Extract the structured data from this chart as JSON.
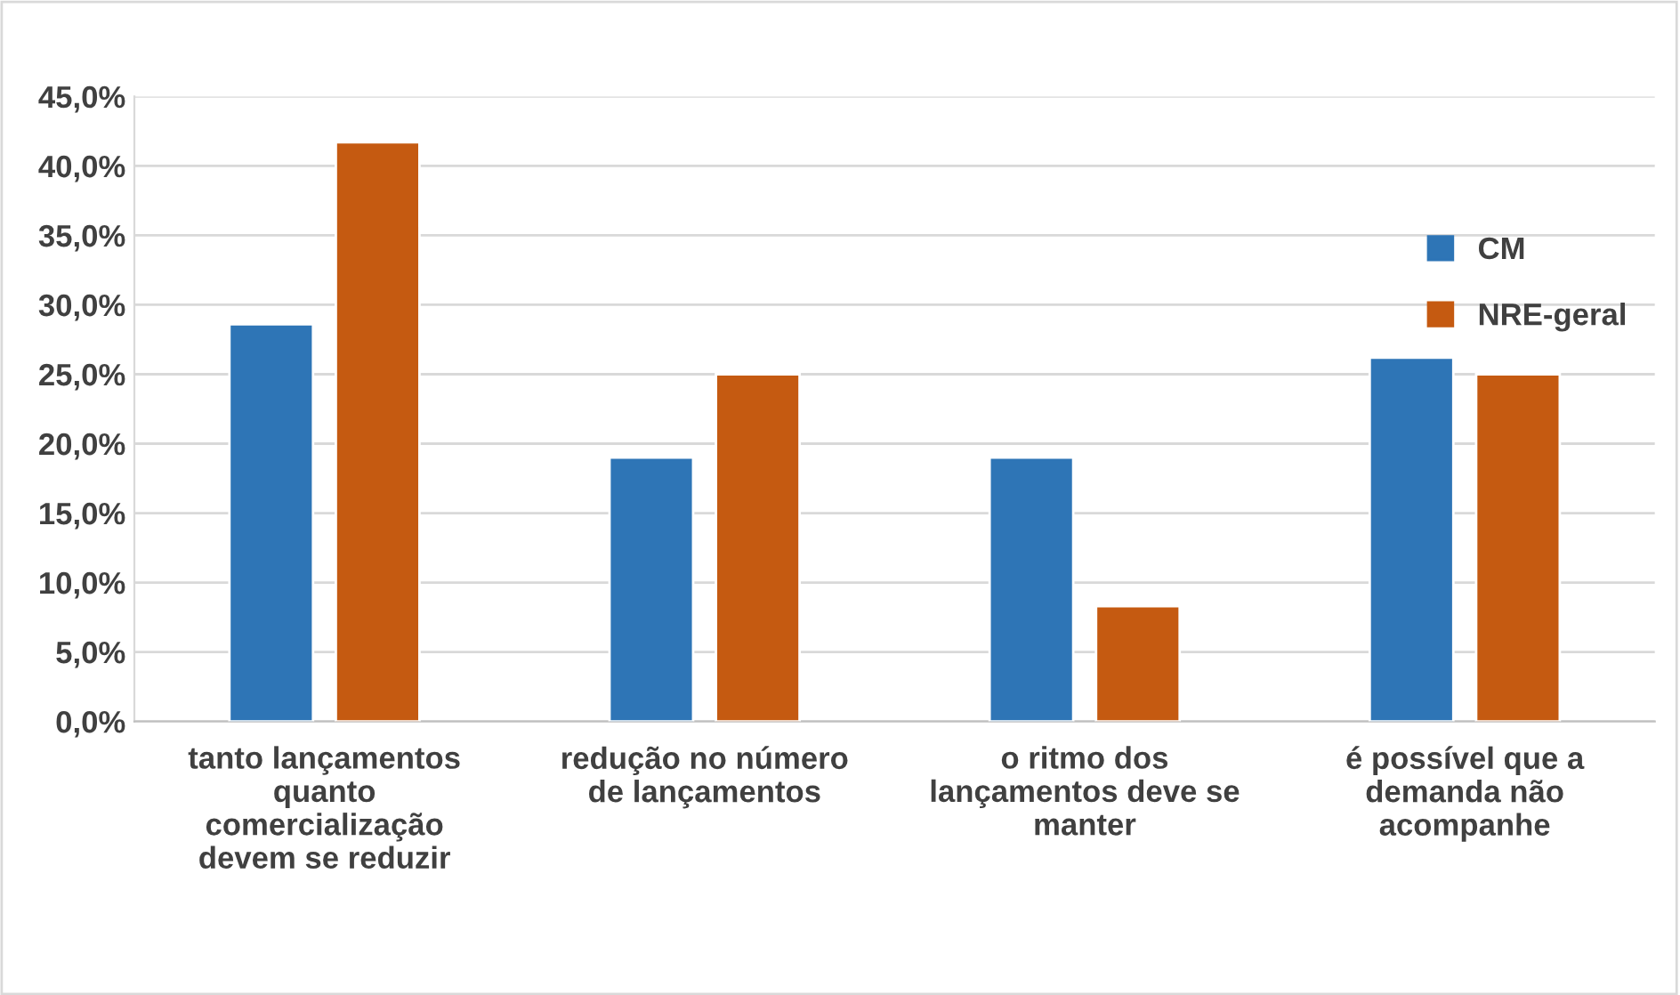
{
  "chart_data": {
    "type": "bar",
    "categories": [
      "tanto lançamentos\nquanto\ncomercialização\ndevem se reduzir",
      "redução no número\nde lançamentos",
      "o ritmo dos\nlançamentos deve se\nmanter",
      "é possível que a\ndemanda não\nacompanhe"
    ],
    "series": [
      {
        "name": "CM",
        "color": "#2e75b6",
        "values": [
          28.6,
          19.0,
          19.0,
          26.2
        ]
      },
      {
        "name": "NRE-geral",
        "color": "#c55a11",
        "values": [
          41.7,
          25.0,
          8.3,
          25.0
        ]
      }
    ],
    "ylim": [
      0,
      45
    ],
    "yticks": [
      {
        "value": 0,
        "label": "0,0%"
      },
      {
        "value": 5,
        "label": "5,0%"
      },
      {
        "value": 10,
        "label": "10,0%"
      },
      {
        "value": 15,
        "label": "15,0%"
      },
      {
        "value": 20,
        "label": "20,0%"
      },
      {
        "value": 25,
        "label": "25,0%"
      },
      {
        "value": 30,
        "label": "30,0%"
      },
      {
        "value": 35,
        "label": "35,0%"
      },
      {
        "value": 40,
        "label": "40,0%"
      },
      {
        "value": 45,
        "label": "45,0%"
      }
    ],
    "grid": "y",
    "legend": "right"
  }
}
